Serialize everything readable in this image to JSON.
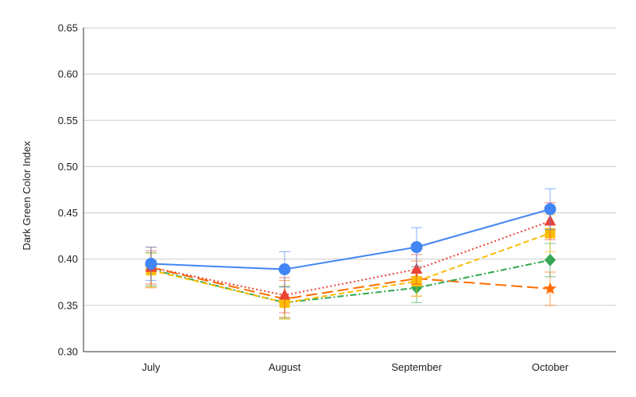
{
  "chart_data": {
    "type": "line",
    "title": "",
    "xlabel": "",
    "ylabel": "Dark Green Color Index",
    "categories": [
      "July",
      "August",
      "September",
      "October"
    ],
    "ylim": [
      0.3,
      0.65
    ],
    "yticks": [
      "0.30",
      "0.35",
      "0.40",
      "0.45",
      "0.50",
      "0.55",
      "0.60",
      "0.65"
    ],
    "grid": true,
    "legend": "none",
    "series": [
      {
        "values": [
          0.395,
          0.389,
          0.413,
          0.454
        ],
        "errors": [
          0.018,
          0.019,
          0.021,
          0.022
        ],
        "color": "#4285F4",
        "marker": "circle",
        "line_style": "solid"
      },
      {
        "values": [
          0.391,
          0.361,
          0.389,
          0.441
        ],
        "errors": [
          0.018,
          0.019,
          0.016,
          0.02
        ],
        "color": "#EA4335",
        "marker": "triangle",
        "line_style": "dotted"
      },
      {
        "values": [
          0.388,
          0.353,
          0.376,
          0.428
        ],
        "errors": [
          0.018,
          0.018,
          0.016,
          0.02
        ],
        "color": "#FBBC04",
        "marker": "square",
        "line_style": "dashed"
      },
      {
        "values": [
          0.389,
          0.353,
          0.369,
          0.399
        ],
        "errors": [
          0.018,
          0.017,
          0.016,
          0.018
        ],
        "color": "#34A853",
        "marker": "diamond",
        "line_style": "dash-dot"
      },
      {
        "values": [
          0.391,
          0.357,
          0.379,
          0.368
        ],
        "errors": [
          0.022,
          0.02,
          0.019,
          0.018
        ],
        "color": "#FF6D01",
        "marker": "star",
        "line_style": "long-dash"
      }
    ]
  }
}
